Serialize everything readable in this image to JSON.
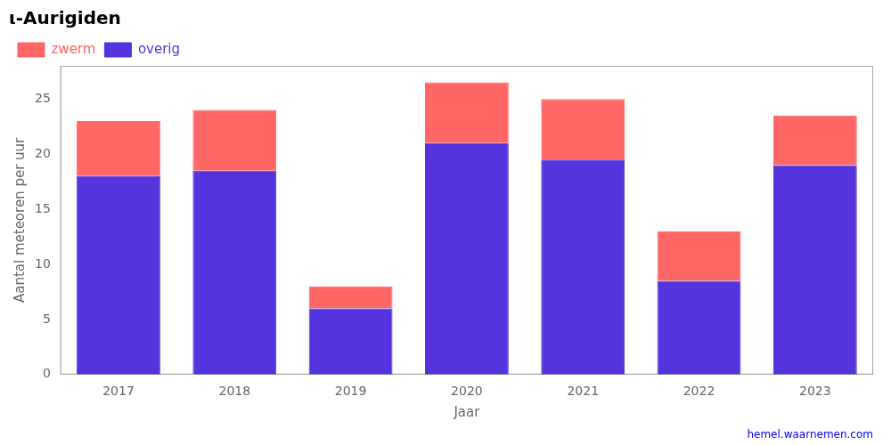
{
  "chart_data": {
    "type": "bar",
    "stacked": true,
    "title": "ι-Aurigiden",
    "x_label": "Jaar",
    "y_label": "Aantal meteoren per uur",
    "categories": [
      "2017",
      "2018",
      "2019",
      "2020",
      "2021",
      "2022",
      "2023"
    ],
    "series": [
      {
        "name": "overig",
        "color": "#5533dd",
        "values": [
          18.0,
          18.5,
          6.0,
          21.0,
          19.5,
          8.5,
          19.0
        ]
      },
      {
        "name": "zwerm",
        "color": "#ff6666",
        "values": [
          5.0,
          5.5,
          2.0,
          5.5,
          5.5,
          4.5,
          4.5
        ]
      }
    ],
    "ylim": [
      0,
      28
    ],
    "yticks": [
      0,
      5,
      10,
      15,
      20,
      25
    ],
    "grid": false,
    "legend": "upper left",
    "annotations": [
      "hemel.waarnemen.com"
    ]
  }
}
